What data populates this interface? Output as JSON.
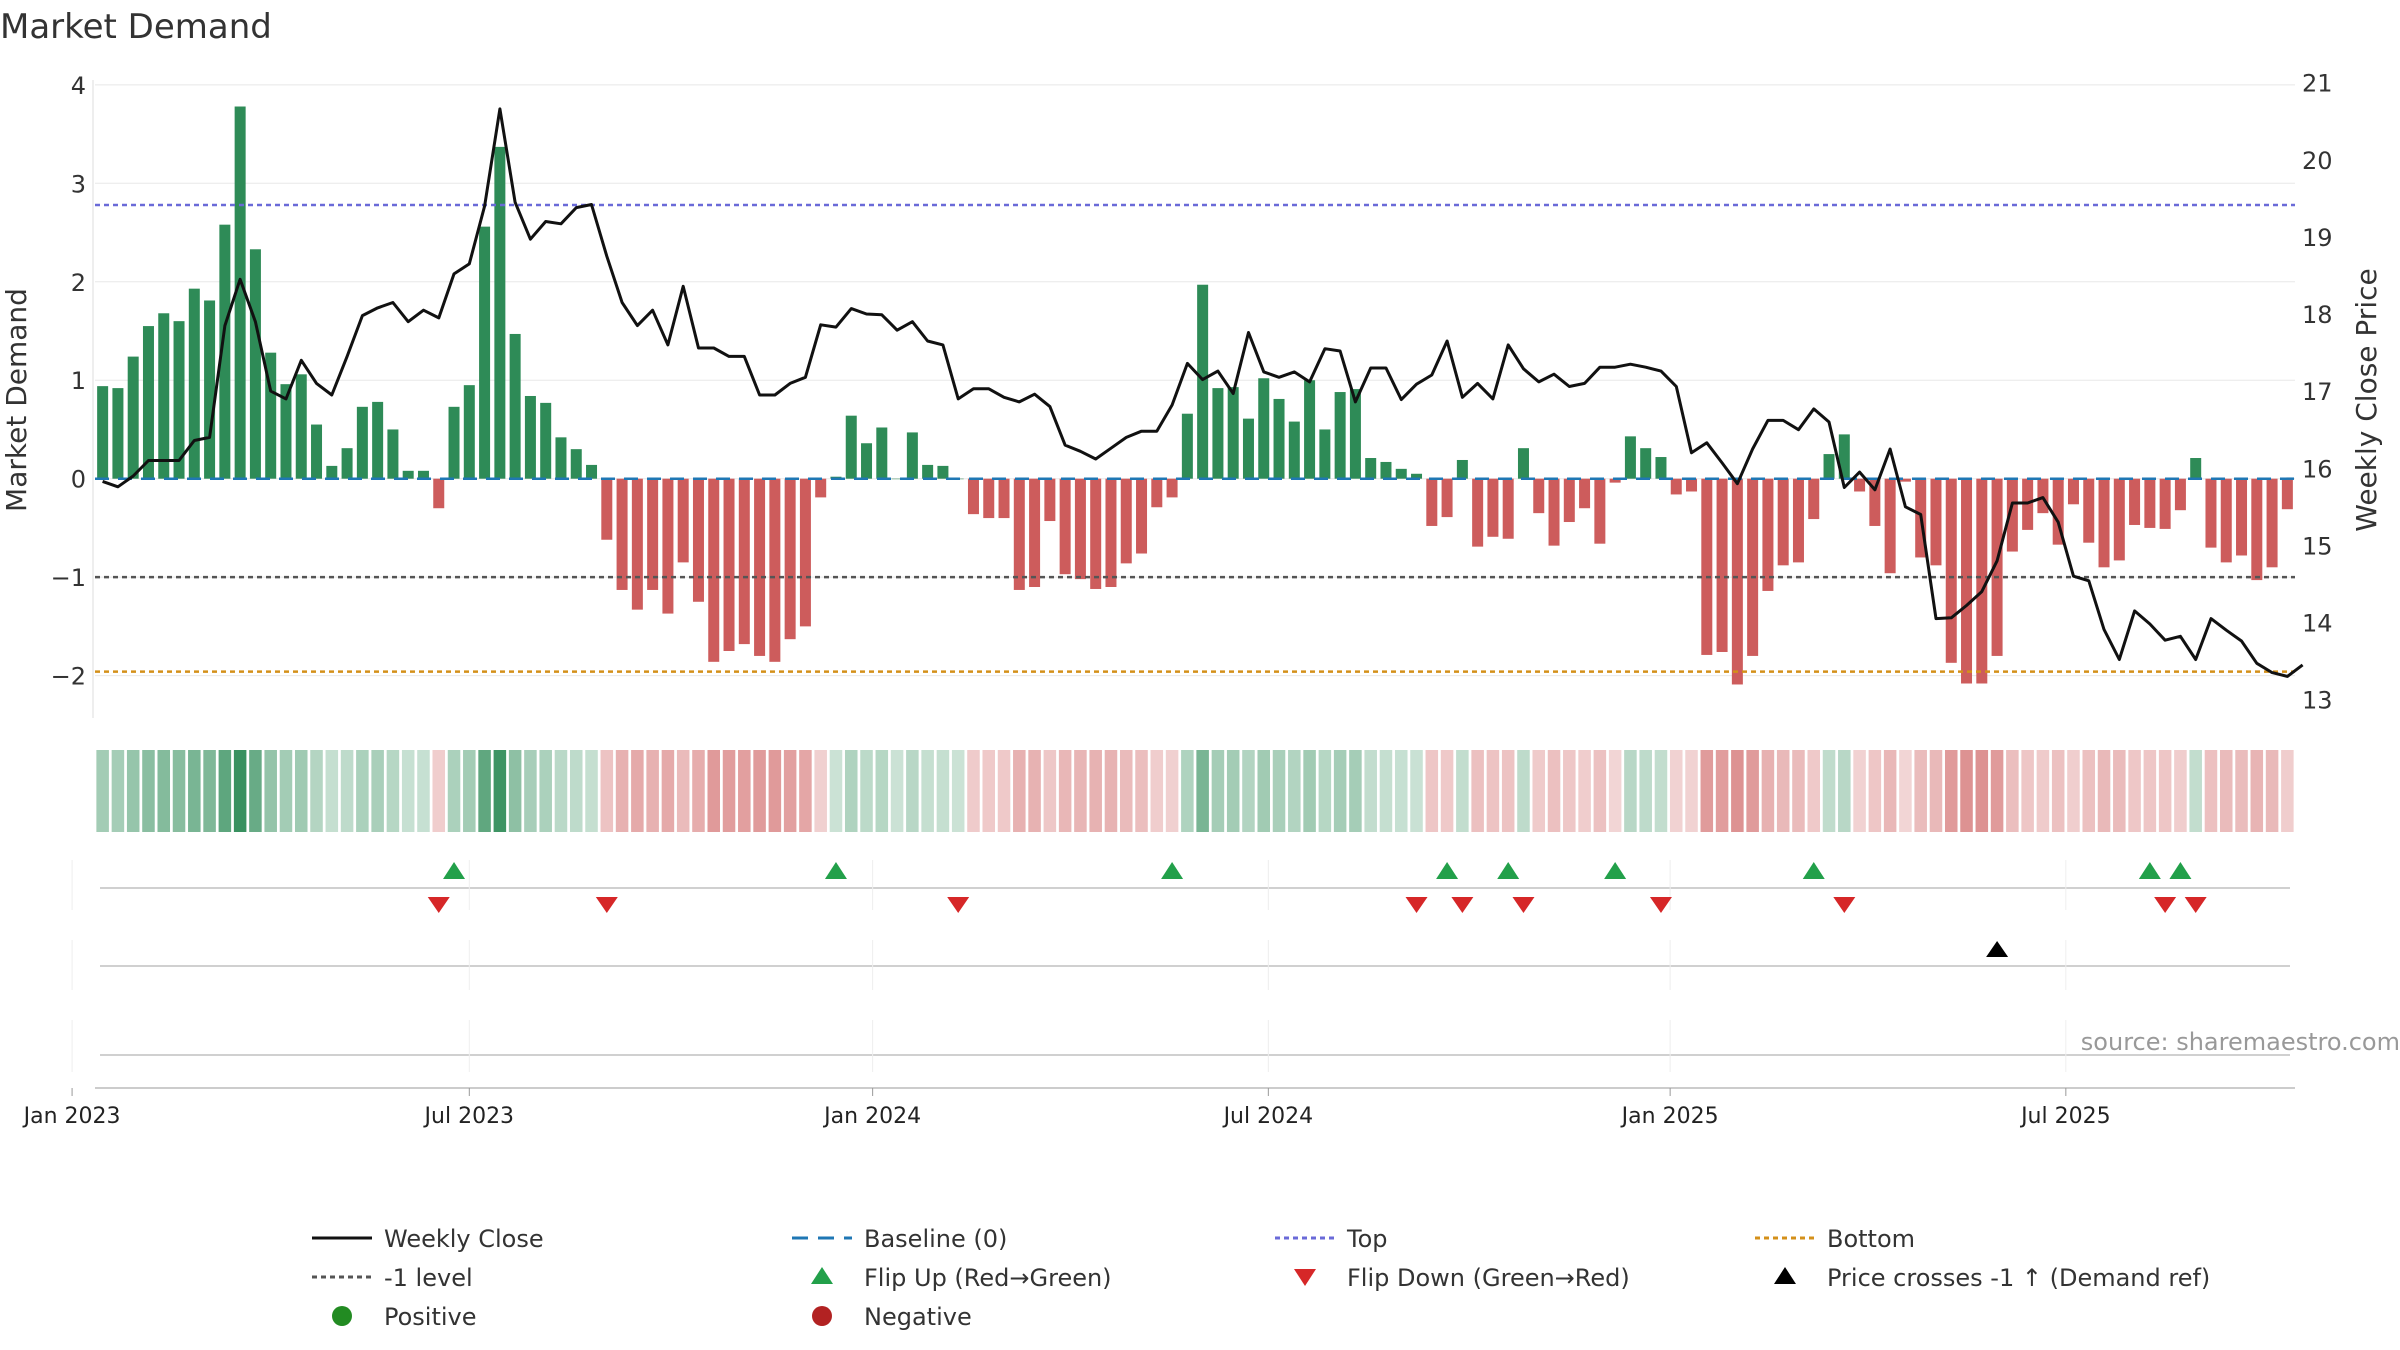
{
  "chart_data": {
    "type": "bar",
    "title": "Market Demand",
    "ylabel_left": "Market Demand",
    "ylabel_right": "Weekly Close Price",
    "ylim_left": [
      -2.4,
      4.1
    ],
    "ylim_right": [
      12.8,
      21.1
    ],
    "yticks_left": [
      4,
      3,
      2,
      1,
      0,
      -1,
      -2
    ],
    "ytick_labels_left": [
      "4",
      "3",
      "2",
      "1",
      "0",
      "−1",
      "−2"
    ],
    "yticks_right": [
      21,
      20,
      19,
      18,
      17,
      16,
      15,
      14,
      13
    ],
    "xtick_labels": [
      "Jan 2023",
      "Jul 2023",
      "Jan 2024",
      "Jul 2024",
      "Jan 2025",
      "Jul 2025"
    ],
    "xtick_weeks": [
      -2.0,
      24.0,
      50.4,
      76.3,
      102.6,
      128.5
    ],
    "reference_levels": {
      "top": 2.78,
      "minus_one": -1.0,
      "bottom": -1.96,
      "baseline": 0
    },
    "weekly_demand": [
      0.94,
      0.92,
      1.24,
      1.55,
      1.68,
      1.6,
      1.93,
      1.81,
      2.58,
      3.78,
      2.33,
      1.28,
      0.96,
      1.06,
      0.55,
      0.13,
      0.31,
      0.73,
      0.78,
      0.5,
      0.08,
      0.08,
      -0.3,
      0.73,
      0.95,
      2.56,
      3.37,
      1.47,
      0.84,
      0.77,
      0.42,
      0.3,
      0.14,
      -0.62,
      -1.13,
      -1.33,
      -1.13,
      -1.37,
      -0.85,
      -1.25,
      -1.86,
      -1.75,
      -1.68,
      -1.8,
      -1.86,
      -1.63,
      -1.5,
      -0.19,
      0.02,
      0.64,
      0.36,
      0.52,
      0.0,
      0.47,
      0.14,
      0.13,
      0.0,
      -0.36,
      -0.4,
      -0.4,
      -1.13,
      -1.1,
      -0.43,
      -0.97,
      -1.02,
      -1.12,
      -1.1,
      -0.86,
      -0.76,
      -0.29,
      -0.19,
      0.66,
      1.97,
      0.92,
      0.93,
      0.61,
      1.02,
      0.81,
      0.58,
      1.0,
      0.5,
      0.88,
      0.91,
      0.21,
      0.17,
      0.1,
      0.05,
      -0.48,
      -0.39,
      0.19,
      -0.69,
      -0.59,
      -0.61,
      0.31,
      -0.35,
      -0.68,
      -0.44,
      -0.3,
      -0.66,
      -0.04,
      0.43,
      0.31,
      0.22,
      -0.16,
      -0.13,
      -1.79,
      -1.76,
      -2.09,
      -1.8,
      -1.14,
      -0.88,
      -0.85,
      -0.41,
      0.25,
      0.45,
      -0.13,
      -0.48,
      -0.96,
      -0.03,
      -0.8,
      -0.88,
      -1.87,
      -2.08,
      -2.08,
      -1.8,
      -0.74,
      -0.52,
      -0.35,
      -0.67,
      -0.26,
      -0.65,
      -0.9,
      -0.83,
      -0.47,
      -0.5,
      -0.51,
      -0.32,
      0.21,
      -0.7,
      -0.85,
      -0.78,
      -1.03,
      -0.9,
      -0.31
    ],
    "weekly_close": [
      15.83,
      15.76,
      15.9,
      16.1,
      16.1,
      16.1,
      16.36,
      16.4,
      17.85,
      18.45,
      17.9,
      17.0,
      16.9,
      17.4,
      17.1,
      16.95,
      17.45,
      17.98,
      18.08,
      18.15,
      17.9,
      18.05,
      17.95,
      18.52,
      18.65,
      19.4,
      20.66,
      19.45,
      18.97,
      19.2,
      19.17,
      19.38,
      19.42,
      18.75,
      18.15,
      17.85,
      18.05,
      17.6,
      18.36,
      17.56,
      17.56,
      17.45,
      17.45,
      16.95,
      16.95,
      17.1,
      17.18,
      17.86,
      17.83,
      18.07,
      18.0,
      17.99,
      17.79,
      17.9,
      17.65,
      17.6,
      16.9,
      17.03,
      17.03,
      16.92,
      16.86,
      16.96,
      16.8,
      16.3,
      16.22,
      16.12,
      16.26,
      16.4,
      16.48,
      16.48,
      16.82,
      17.36,
      17.15,
      17.26,
      16.97,
      17.76,
      17.25,
      17.18,
      17.25,
      17.12,
      17.55,
      17.52,
      16.86,
      17.3,
      17.3,
      16.89,
      17.09,
      17.21,
      17.65,
      16.92,
      17.1,
      16.9,
      17.6,
      17.29,
      17.12,
      17.22,
      17.06,
      17.1,
      17.31,
      17.31,
      17.35,
      17.31,
      17.26,
      17.06,
      16.2,
      16.33,
      16.07,
      15.8,
      16.25,
      16.62,
      16.62,
      16.5,
      16.77,
      16.6,
      15.75,
      15.95,
      15.72,
      16.25,
      15.5,
      15.4,
      14.05,
      14.06,
      14.22,
      14.4,
      14.8,
      15.55,
      15.55,
      15.62,
      15.3,
      14.6,
      14.54,
      13.91,
      13.52,
      14.15,
      13.98,
      13.77,
      13.82,
      13.52,
      14.05,
      13.9,
      13.76,
      13.47,
      13.35,
      13.3,
      13.45
    ],
    "flip_up_weeks": [
      23,
      48,
      70,
      88,
      92,
      99,
      112,
      134,
      136
    ],
    "flip_down_weeks": [
      22,
      33,
      56,
      86,
      89,
      93,
      102,
      114,
      135,
      137
    ],
    "price_cross_weeks": [
      124
    ],
    "source_note": "source: sharemaestro.com",
    "legend": [
      {
        "key": "weekly_close",
        "label": "Weekly Close"
      },
      {
        "key": "baseline",
        "label": "Baseline (0)"
      },
      {
        "key": "top",
        "label": "Top"
      },
      {
        "key": "bottom",
        "label": "Bottom"
      },
      {
        "key": "minus_one",
        "label": "-1 level"
      },
      {
        "key": "flip_up",
        "label": "Flip Up (Red→Green)"
      },
      {
        "key": "flip_down",
        "label": "Flip Down (Green→Red)"
      },
      {
        "key": "price_cross",
        "label": "Price crosses -1 ↑ (Demand ref)"
      },
      {
        "key": "positive",
        "label": "Positive"
      },
      {
        "key": "negative",
        "label": "Negative"
      }
    ]
  },
  "colors": {
    "bar_positive": "#2e8b57",
    "bar_negative": "#cd5c5c",
    "close_line": "#111111",
    "baseline": "#1f77b4",
    "top": "#6a6ad8",
    "minus_one": "#555555",
    "bottom": "#d4901a",
    "flip_up": "#22a04a",
    "flip_down": "#d62728",
    "price_cross": "#000000",
    "positive_dot": "#228b22",
    "negative_dot": "#b22222"
  }
}
